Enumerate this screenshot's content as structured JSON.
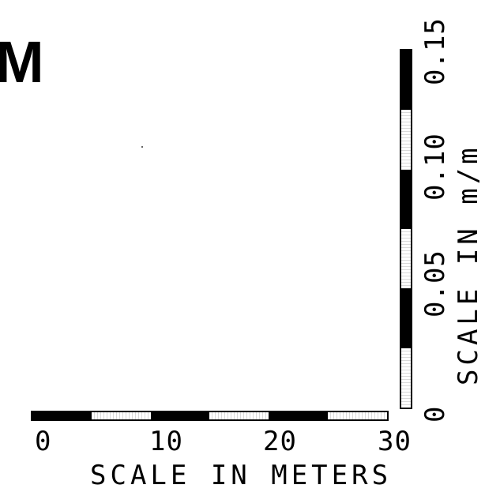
{
  "heading": "M",
  "horizontal_scale": {
    "title": "SCALE  IN  METERS",
    "tick_labels": [
      "0",
      "10",
      "20",
      "30"
    ],
    "segments": 6,
    "range": [
      0,
      30
    ],
    "unit": "METERS"
  },
  "vertical_scale": {
    "title": "SCALE  IN  m/m",
    "tick_labels": [
      "0",
      "0.05",
      "0.10",
      "0.15"
    ],
    "segments": 6,
    "range": [
      0,
      0.15
    ],
    "unit": "m/m"
  },
  "colors": {
    "ink": "#000000",
    "paper": "#ffffff"
  }
}
